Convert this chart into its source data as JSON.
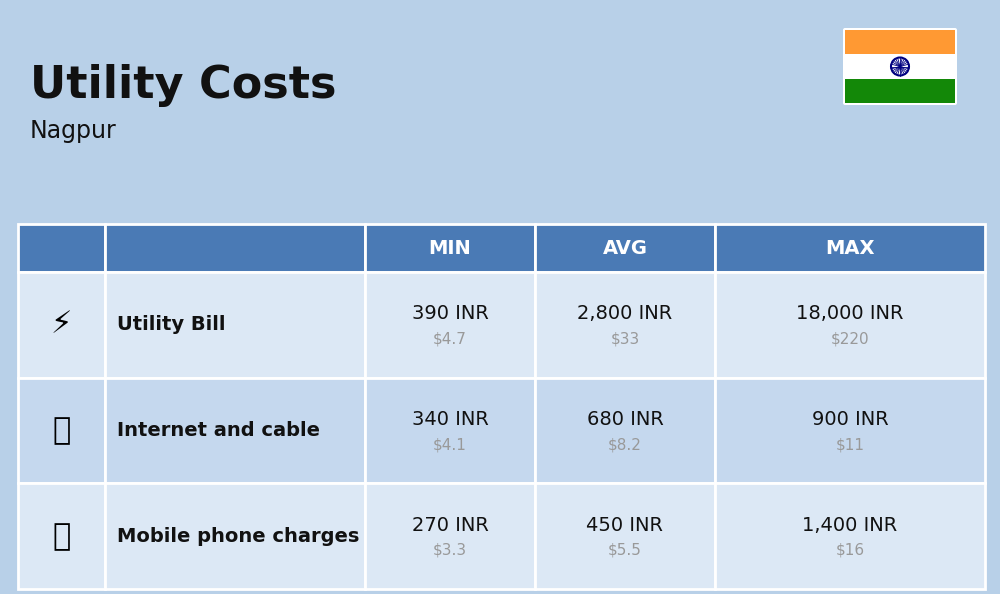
{
  "title": "Utility Costs",
  "subtitle": "Nagpur",
  "background_color": "#b8d0e8",
  "header_bg_color": "#4a7ab5",
  "header_text_color": "#ffffff",
  "row_bg_color_1": "#dce8f5",
  "row_bg_color_2": "#c5d8ee",
  "table_border_color": "#ffffff",
  "text_color": "#111111",
  "usd_color": "#999999",
  "rows": [
    {
      "label": "Utility Bill",
      "min_inr": "390 INR",
      "min_usd": "$4.7",
      "avg_inr": "2,800 INR",
      "avg_usd": "$33",
      "max_inr": "18,000 INR",
      "max_usd": "$220"
    },
    {
      "label": "Internet and cable",
      "min_inr": "340 INR",
      "min_usd": "$4.1",
      "avg_inr": "680 INR",
      "avg_usd": "$8.2",
      "max_inr": "900 INR",
      "max_usd": "$11"
    },
    {
      "label": "Mobile phone charges",
      "min_inr": "270 INR",
      "min_usd": "$3.3",
      "avg_inr": "450 INR",
      "avg_usd": "$5.5",
      "max_inr": "1,400 INR",
      "max_usd": "$16"
    }
  ],
  "flag_colors": [
    "#FF9933",
    "#FFFFFF",
    "#138808"
  ],
  "flag_chakra_color": "#000080"
}
